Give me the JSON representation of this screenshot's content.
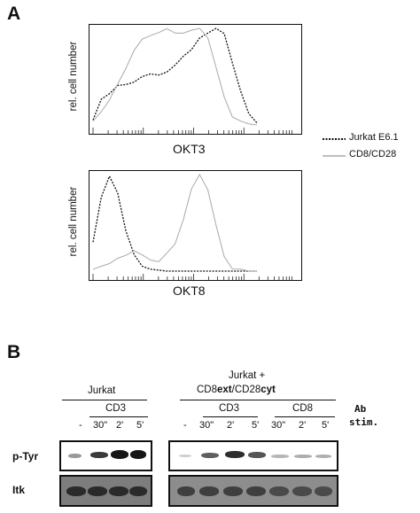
{
  "panel_a": {
    "letter": "A",
    "top_plot": {
      "ylabel": "rel. cell number",
      "xlabel": "OKT3"
    },
    "bottom_plot": {
      "ylabel": "rel. cell number",
      "xlabel": "OKT8"
    },
    "legend": [
      {
        "label": "Jurkat E6.1",
        "color": "#111111",
        "style": "dotted"
      },
      {
        "label": "CD8/CD28",
        "color": "#a9a9a9",
        "style": "solid"
      }
    ]
  },
  "panel_b": {
    "letter": "B",
    "group1": {
      "title": "Jurkat",
      "stim_label": "CD3",
      "lanes": [
        "-",
        "30\"",
        "2'",
        "5'"
      ]
    },
    "group2": {
      "title_line1": "Jurkat +",
      "title_cd8": "CD8",
      "title_ext": "ext",
      "title_slash": "/CD28",
      "title_cyt": "cyt",
      "stim_cd3": "CD3",
      "stim_cd8": "CD8",
      "lanes": [
        "-",
        "30\"",
        "2'",
        "5'",
        "30\"",
        "2'",
        "5'"
      ]
    },
    "ab_label": "Ab",
    "stim_label": "stim.",
    "rows": [
      "p-Tyr",
      "Itk"
    ]
  },
  "chart_data": [
    {
      "type": "area",
      "xlabel": "OKT3",
      "ylabel": "rel. cell number",
      "x_scale": "log",
      "series": [
        {
          "name": "Jurkat E6.1",
          "x": [
            0,
            0.05,
            0.1,
            0.15,
            0.2,
            0.25,
            0.3,
            0.35,
            0.4,
            0.45,
            0.5,
            0.55,
            0.6,
            0.65,
            0.7,
            0.75,
            0.8,
            0.85,
            0.9,
            0.95,
            1.0
          ],
          "y": [
            0.05,
            0.22,
            0.32,
            0.38,
            0.4,
            0.42,
            0.47,
            0.52,
            0.55,
            0.57,
            0.62,
            0.72,
            0.82,
            0.9,
            0.96,
            1.0,
            0.9,
            0.62,
            0.32,
            0.1,
            0.02
          ]
        },
        {
          "name": "CD8/CD28",
          "x": [
            0,
            0.05,
            0.1,
            0.15,
            0.2,
            0.25,
            0.3,
            0.35,
            0.4,
            0.45,
            0.5,
            0.55,
            0.6,
            0.65,
            0.7,
            0.75,
            0.8,
            0.85,
            0.9,
            0.95,
            1.0
          ],
          "y": [
            0.04,
            0.15,
            0.28,
            0.45,
            0.62,
            0.78,
            0.9,
            0.95,
            0.98,
            0.97,
            0.95,
            0.92,
            0.95,
            0.98,
            0.86,
            0.58,
            0.32,
            0.12,
            0.04,
            0.01,
            0.0
          ]
        }
      ]
    },
    {
      "type": "area",
      "xlabel": "OKT8",
      "ylabel": "rel. cell number",
      "x_scale": "log",
      "series": [
        {
          "name": "Jurkat E6.1",
          "x": [
            0,
            0.05,
            0.1,
            0.15,
            0.2,
            0.25,
            0.3,
            0.35,
            0.4,
            0.45,
            0.5,
            0.55,
            0.6,
            0.65,
            0.7,
            0.75,
            0.8,
            0.85,
            0.9,
            0.95,
            1.0
          ],
          "y": [
            0.3,
            0.72,
            0.98,
            0.78,
            0.4,
            0.15,
            0.05,
            0.02,
            0.01,
            0.0,
            0.0,
            0.0,
            0.0,
            0.0,
            0.0,
            0.0,
            0.0,
            0.0,
            0.0,
            0.0,
            0.0
          ]
        },
        {
          "name": "CD8/CD28",
          "x": [
            0,
            0.05,
            0.1,
            0.15,
            0.2,
            0.25,
            0.3,
            0.35,
            0.4,
            0.45,
            0.5,
            0.55,
            0.6,
            0.65,
            0.7,
            0.75,
            0.8,
            0.85,
            0.9,
            0.95,
            1.0
          ],
          "y": [
            0.02,
            0.05,
            0.1,
            0.16,
            0.2,
            0.22,
            0.18,
            0.14,
            0.12,
            0.16,
            0.28,
            0.5,
            0.82,
            1.0,
            0.8,
            0.46,
            0.18,
            0.06,
            0.02,
            0.0,
            0.0
          ]
        }
      ]
    }
  ]
}
